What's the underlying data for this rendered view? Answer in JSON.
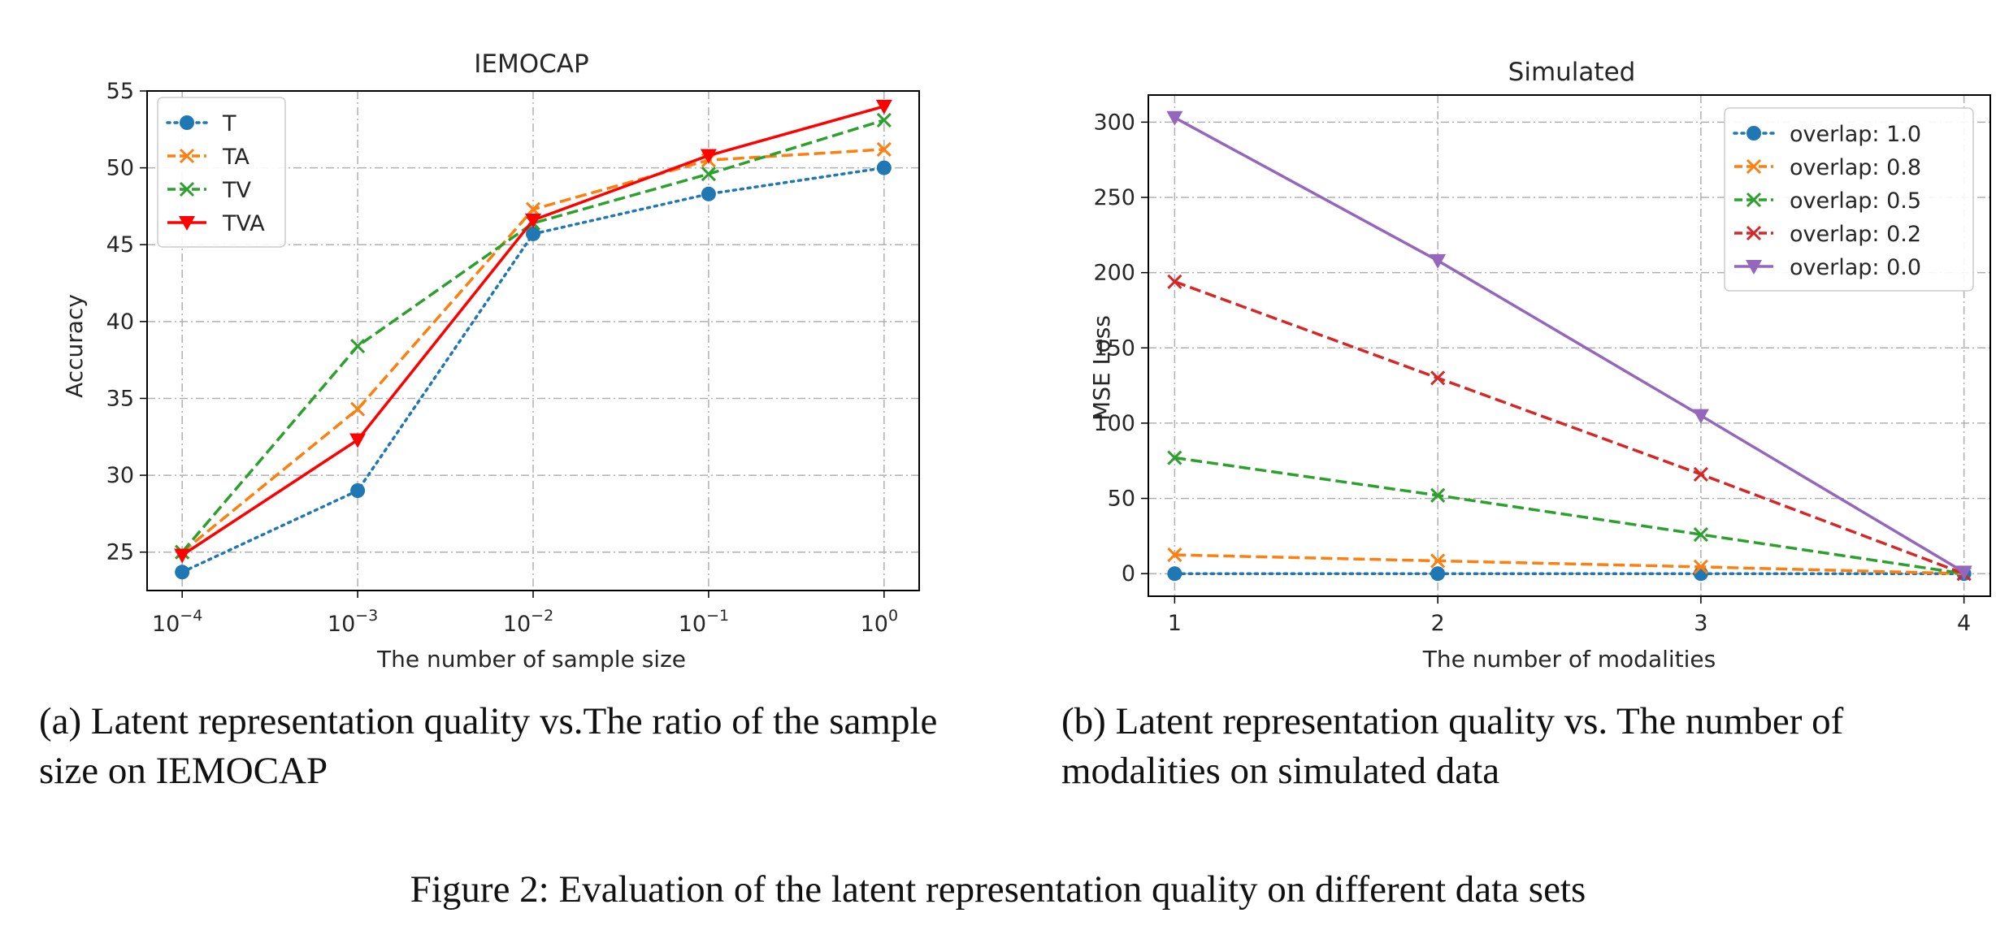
{
  "chart_data": [
    {
      "type": "line",
      "title": "IEMOCAP",
      "xlabel": "The number of sample size",
      "ylabel": "Accuracy",
      "x": [
        0.0001,
        0.001,
        0.01,
        0.1,
        1
      ],
      "x_scale": "log",
      "xticks": [
        {
          "base": "10",
          "exp": "−4"
        },
        {
          "base": "10",
          "exp": "−3"
        },
        {
          "base": "10",
          "exp": "−2"
        },
        {
          "base": "10",
          "exp": "−1"
        },
        {
          "base": "10",
          "exp": "0"
        }
      ],
      "yticks": [
        "25",
        "30",
        "35",
        "40",
        "45",
        "50",
        "55"
      ],
      "ylim": [
        22.5,
        55
      ],
      "grid": true,
      "legend_position": "top-left",
      "series": [
        {
          "name": "T",
          "color": "#1f77b4",
          "linestyle": "dotted",
          "marker": "circle",
          "values": [
            23.7,
            29.0,
            45.7,
            48.3,
            50.0
          ]
        },
        {
          "name": "TA",
          "color": "#ff7f0e",
          "linestyle": "dashed",
          "marker": "x",
          "values": [
            25.0,
            34.3,
            47.3,
            50.5,
            51.2
          ]
        },
        {
          "name": "TV",
          "color": "#2ca02c",
          "linestyle": "dashed",
          "marker": "x",
          "values": [
            25.0,
            38.4,
            46.4,
            49.6,
            53.1
          ]
        },
        {
          "name": "TVA",
          "color": "#ff0000",
          "linestyle": "solid",
          "marker": "triangle-down",
          "values": [
            24.8,
            32.3,
            46.6,
            50.8,
            54.0
          ]
        }
      ]
    },
    {
      "type": "line",
      "title": "Simulated",
      "xlabel": "The number of modalities",
      "ylabel": "MSE Loss",
      "x": [
        1,
        2,
        3,
        4
      ],
      "xlim": [
        0.9,
        4.1
      ],
      "ylim": [
        -15,
        318
      ],
      "xticks": [
        "1",
        "2",
        "3",
        "4"
      ],
      "yticks": [
        "0",
        "50",
        "100",
        "150",
        "200",
        "250",
        "300"
      ],
      "grid": true,
      "legend_position": "top-right",
      "series": [
        {
          "name": "overlap: 1.0",
          "color": "#1f77b4",
          "linestyle": "dotted",
          "marker": "circle",
          "values": [
            0,
            0,
            0,
            0
          ]
        },
        {
          "name": "overlap: 0.8",
          "color": "#ff7f0e",
          "linestyle": "dashed",
          "marker": "x",
          "values": [
            12.5,
            8.5,
            4.5,
            0
          ]
        },
        {
          "name": "overlap: 0.5",
          "color": "#2ca02c",
          "linestyle": "dashed",
          "marker": "x",
          "values": [
            77,
            52,
            26,
            0
          ]
        },
        {
          "name": "overlap: 0.2",
          "color": "#d62728",
          "linestyle": "dashed",
          "marker": "x",
          "values": [
            194,
            130,
            66,
            0
          ]
        },
        {
          "name": "overlap: 0.0",
          "color": "#9467bd",
          "linestyle": "solid",
          "marker": "triangle-down",
          "values": [
            303,
            208,
            105,
            1
          ]
        }
      ]
    }
  ],
  "captions": {
    "a": "(a) Latent representation quality vs.The ratio of the sample size on IEMOCAP",
    "b": "(b) Latent representation quality vs. The number of modalities on simulated data",
    "figure": "Figure 2: Evaluation of the latent representation quality on different data sets"
  }
}
